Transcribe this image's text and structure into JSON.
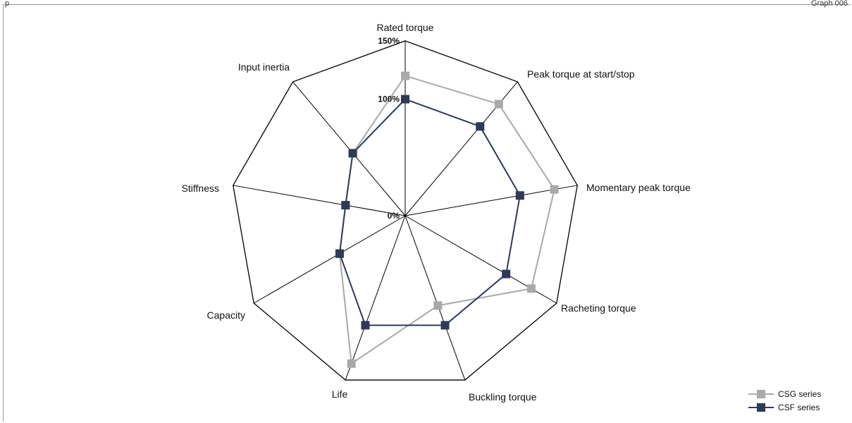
{
  "header": {
    "left_text": "p",
    "graph_number": "Graph 006"
  },
  "chart_data": {
    "type": "radar",
    "axes": [
      "Rated torque",
      "Peak torque at start/stop",
      "Momentary peak torque",
      "Racheting torque",
      "Buckling torque",
      "Life",
      "Capacity",
      "Stiffness",
      "Input inertia"
    ],
    "ticks": [
      "0%",
      "100%",
      "150%"
    ],
    "tick_values": [
      0,
      100,
      150
    ],
    "range": [
      0,
      150
    ],
    "grid": true,
    "legend_position": "bottom-right",
    "series": [
      {
        "name": "CSG series",
        "color": "#a9a9a9",
        "values": [
          120,
          125,
          130,
          125,
          82,
          135,
          65,
          52,
          70
        ]
      },
      {
        "name": "CSF series",
        "color": "#2e3a56",
        "values": [
          100,
          100,
          100,
          100,
          100,
          100,
          65,
          52,
          70
        ]
      }
    ]
  }
}
